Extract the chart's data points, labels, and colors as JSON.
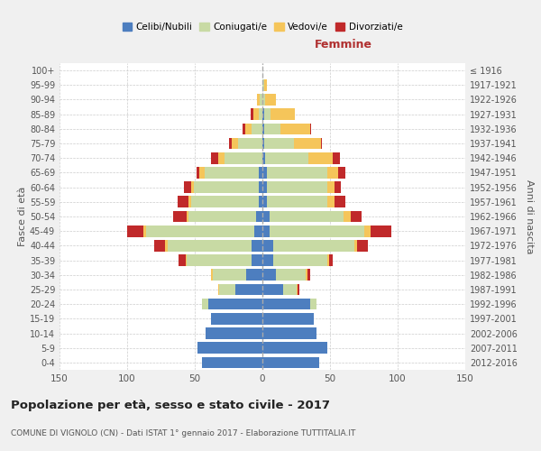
{
  "age_groups": [
    "0-4",
    "5-9",
    "10-14",
    "15-19",
    "20-24",
    "25-29",
    "30-34",
    "35-39",
    "40-44",
    "45-49",
    "50-54",
    "55-59",
    "60-64",
    "65-69",
    "70-74",
    "75-79",
    "80-84",
    "85-89",
    "90-94",
    "95-99",
    "100+"
  ],
  "birth_years": [
    "2012-2016",
    "2007-2011",
    "2002-2006",
    "1997-2001",
    "1992-1996",
    "1987-1991",
    "1982-1986",
    "1977-1981",
    "1972-1976",
    "1967-1971",
    "1962-1966",
    "1957-1961",
    "1952-1956",
    "1947-1951",
    "1942-1946",
    "1937-1941",
    "1932-1936",
    "1927-1931",
    "1922-1926",
    "1917-1921",
    "≤ 1916"
  ],
  "male_celibi": [
    45,
    48,
    42,
    38,
    40,
    20,
    12,
    8,
    8,
    6,
    5,
    3,
    3,
    3,
    0,
    0,
    0,
    0,
    0,
    0,
    0
  ],
  "male_coniugati": [
    0,
    0,
    0,
    0,
    5,
    12,
    25,
    48,
    62,
    80,
    50,
    50,
    48,
    40,
    28,
    18,
    8,
    3,
    2,
    0,
    0
  ],
  "male_vedovi": [
    0,
    0,
    0,
    0,
    0,
    1,
    1,
    1,
    2,
    2,
    1,
    2,
    2,
    4,
    5,
    5,
    5,
    4,
    2,
    0,
    0
  ],
  "male_divorziati": [
    0,
    0,
    0,
    0,
    0,
    0,
    0,
    5,
    8,
    12,
    10,
    8,
    5,
    2,
    5,
    2,
    2,
    2,
    0,
    0,
    0
  ],
  "female_celibi": [
    42,
    48,
    40,
    38,
    35,
    15,
    10,
    8,
    8,
    5,
    5,
    3,
    3,
    3,
    2,
    1,
    1,
    1,
    0,
    0,
    0
  ],
  "female_coniugati": [
    0,
    0,
    0,
    0,
    5,
    10,
    22,
    40,
    60,
    70,
    55,
    45,
    45,
    45,
    32,
    22,
    12,
    5,
    2,
    1,
    0
  ],
  "female_vedovi": [
    0,
    0,
    0,
    0,
    0,
    1,
    1,
    1,
    2,
    5,
    5,
    5,
    5,
    8,
    18,
    20,
    22,
    18,
    8,
    2,
    0
  ],
  "female_divorziati": [
    0,
    0,
    0,
    0,
    0,
    1,
    2,
    3,
    8,
    15,
    8,
    8,
    5,
    5,
    5,
    1,
    1,
    0,
    0,
    0,
    0
  ],
  "color_celibi": "#4d7ebf",
  "color_coniugati": "#c8daa4",
  "color_vedovi": "#f5c55a",
  "color_divorziati": "#c0292a",
  "title": "Popolazione per età, sesso e stato civile - 2017",
  "subtitle": "COMUNE DI VIGNOLO (CN) - Dati ISTAT 1° gennaio 2017 - Elaborazione TUTTITALIA.IT",
  "xlabel_right": "Femmine",
  "ylabel_left": "Fasce di età",
  "ylabel_right": "Anni di nascita",
  "xlim": 150,
  "bg_color": "#f0f0f0",
  "plot_bg_color": "#ffffff",
  "grid_color": "#cccccc"
}
